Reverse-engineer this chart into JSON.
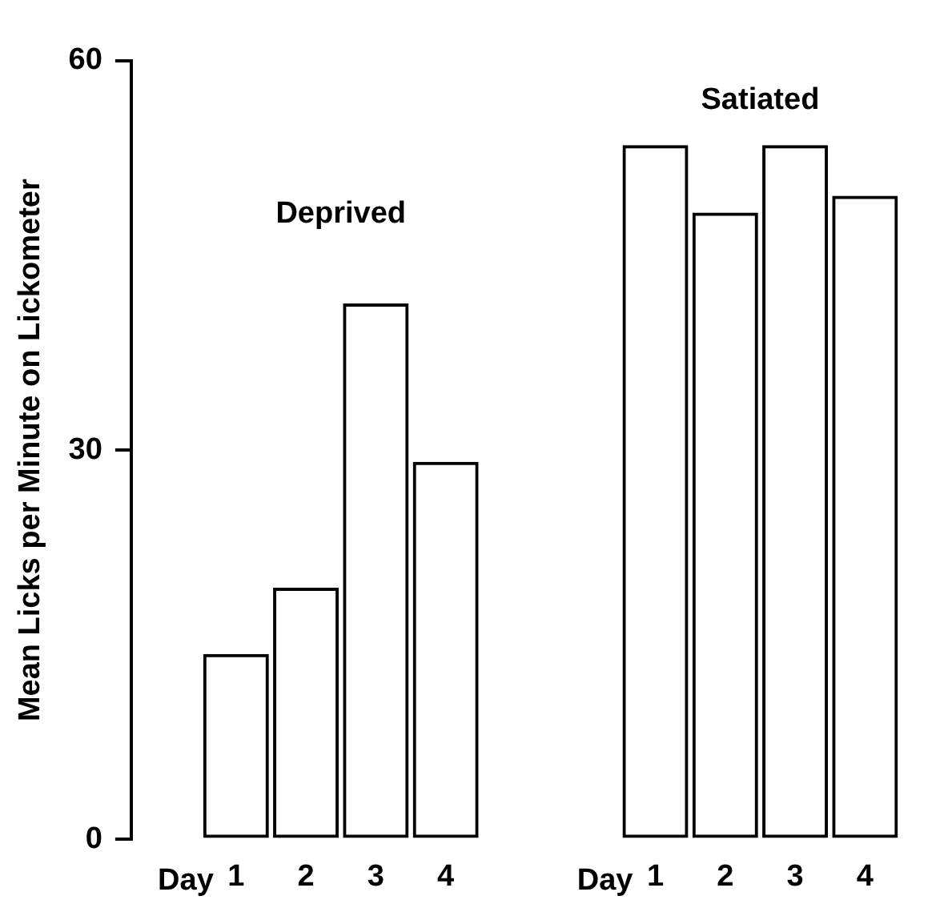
{
  "chart_data": {
    "type": "bar",
    "ylabel": "Mean Licks per Minute on Lickometer",
    "categories": [
      null,
      "1",
      "2",
      "3",
      "4",
      null,
      null,
      "1",
      "2",
      "3",
      "4"
    ],
    "values": [
      null,
      14.3,
      19.4,
      41.3,
      29.1,
      null,
      null,
      53.5,
      48.3,
      53.5,
      49.6
    ],
    "color": "#000000",
    "ylim": [
      0,
      60
    ],
    "yticks": [
      0,
      30,
      60
    ],
    "grid": false,
    "legend": false,
    "annotations": [
      "Deprived",
      "Satiated",
      "Day",
      "Day"
    ]
  }
}
